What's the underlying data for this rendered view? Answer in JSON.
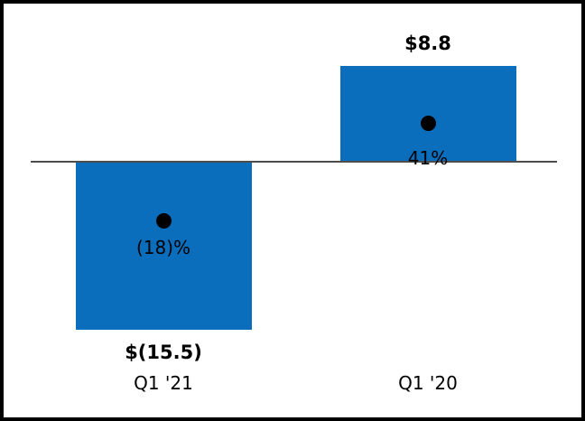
{
  "chart_data": {
    "type": "bar",
    "title": "",
    "xlabel": "",
    "ylabel": "",
    "categories": [
      "Q1 '21",
      "Q1 '20"
    ],
    "series": [
      {
        "name": "value_millions",
        "values": [
          -15.5,
          8.8
        ]
      },
      {
        "name": "percent",
        "values": [
          -18,
          41
        ]
      }
    ],
    "values": [
      -15.5,
      8.8
    ],
    "value_labels": [
      "$(15.5)",
      "$8.8"
    ],
    "percent_labels": [
      "(18)%",
      "41%"
    ],
    "baseline_value": 0,
    "ylim": [
      -16.5,
      11
    ],
    "grid": false,
    "legend": false,
    "zero_line": true,
    "bar_color": "#0a6ebd",
    "marker_color": "#000000",
    "zero_line_color": "#4d4d4d",
    "background_color": "#ffffff",
    "border_color": "#000000"
  }
}
